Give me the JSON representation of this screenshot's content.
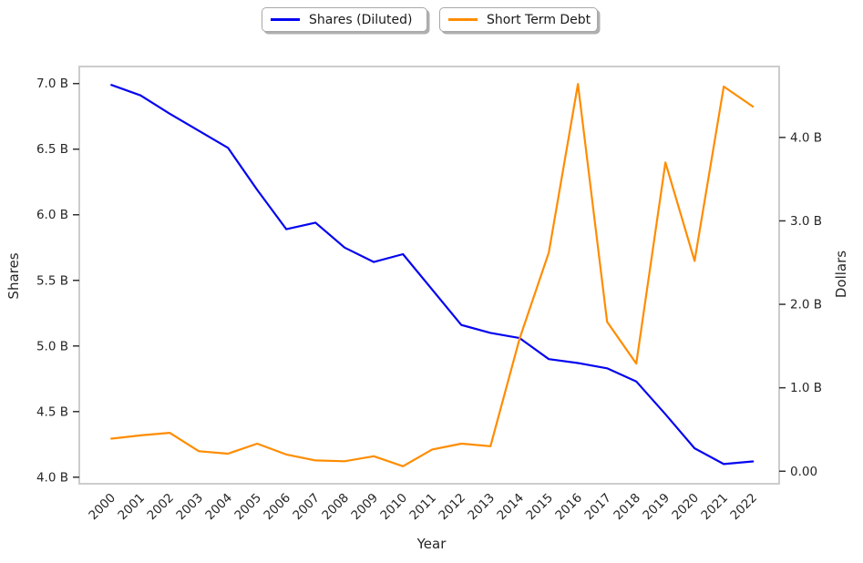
{
  "legend": {
    "items": [
      {
        "label": "Shares (Diluted)"
      },
      {
        "label": "Short Term Debt"
      }
    ]
  },
  "colors": {
    "shares_line": "#0404f0",
    "debt_line": "#ff8c00",
    "spine": "#cccccc",
    "tick_mark": "#333333",
    "text": "#262626",
    "background": "#ffffff"
  },
  "chart_data": {
    "type": "line",
    "title": "",
    "xlabel": "Year",
    "ylabel_left": "Shares",
    "ylabel_right": "Dollars",
    "x": [
      2000,
      2001,
      2002,
      2003,
      2004,
      2005,
      2006,
      2007,
      2008,
      2009,
      2010,
      2011,
      2012,
      2013,
      2014,
      2015,
      2016,
      2017,
      2018,
      2019,
      2020,
      2021,
      2022
    ],
    "series": [
      {
        "name": "Shares (Diluted)",
        "axis": "left",
        "color": "#0404f0",
        "values": [
          6.99,
          6.91,
          6.77,
          6.64,
          6.51,
          6.19,
          5.89,
          5.94,
          5.75,
          5.64,
          5.7,
          5.43,
          5.16,
          5.1,
          5.06,
          4.9,
          4.87,
          4.83,
          4.73,
          4.48,
          4.22,
          4.1,
          4.12
        ]
      },
      {
        "name": "Short Term Debt",
        "axis": "right",
        "color": "#ff8c00",
        "values": [
          0.39,
          0.43,
          0.46,
          0.24,
          0.21,
          0.33,
          0.2,
          0.13,
          0.12,
          0.18,
          0.06,
          0.26,
          0.33,
          0.3,
          1.59,
          2.62,
          4.64,
          1.79,
          1.29,
          3.7,
          2.52,
          4.61,
          4.37
        ]
      }
    ],
    "xlim": [
      1998.9,
      2022.9
    ],
    "ylim_left": [
      3.95,
      7.13
    ],
    "ylim_right": [
      -0.15,
      4.85
    ],
    "left_ticks": [
      {
        "v": 4.0,
        "label": "4.0 B"
      },
      {
        "v": 4.5,
        "label": "4.5 B"
      },
      {
        "v": 5.0,
        "label": "5.0 B"
      },
      {
        "v": 5.5,
        "label": "5.5 B"
      },
      {
        "v": 6.0,
        "label": "6.0 B"
      },
      {
        "v": 6.5,
        "label": "6.5 B"
      },
      {
        "v": 7.0,
        "label": "7.0 B"
      }
    ],
    "right_ticks": [
      {
        "v": 0.0,
        "label": "0.00"
      },
      {
        "v": 1.0,
        "label": "1.0 B"
      },
      {
        "v": 2.0,
        "label": "2.0 B"
      },
      {
        "v": 3.0,
        "label": "3.0 B"
      },
      {
        "v": 4.0,
        "label": "4.0 B"
      }
    ],
    "x_tick_labels": [
      "2000",
      "2001",
      "2002",
      "2003",
      "2004",
      "2005",
      "2006",
      "2007",
      "2008",
      "2009",
      "2010",
      "2011",
      "2012",
      "2013",
      "2014",
      "2015",
      "2016",
      "2017",
      "2018",
      "2019",
      "2020",
      "2021",
      "2022"
    ],
    "grid": false,
    "legend_position": "top-center"
  }
}
